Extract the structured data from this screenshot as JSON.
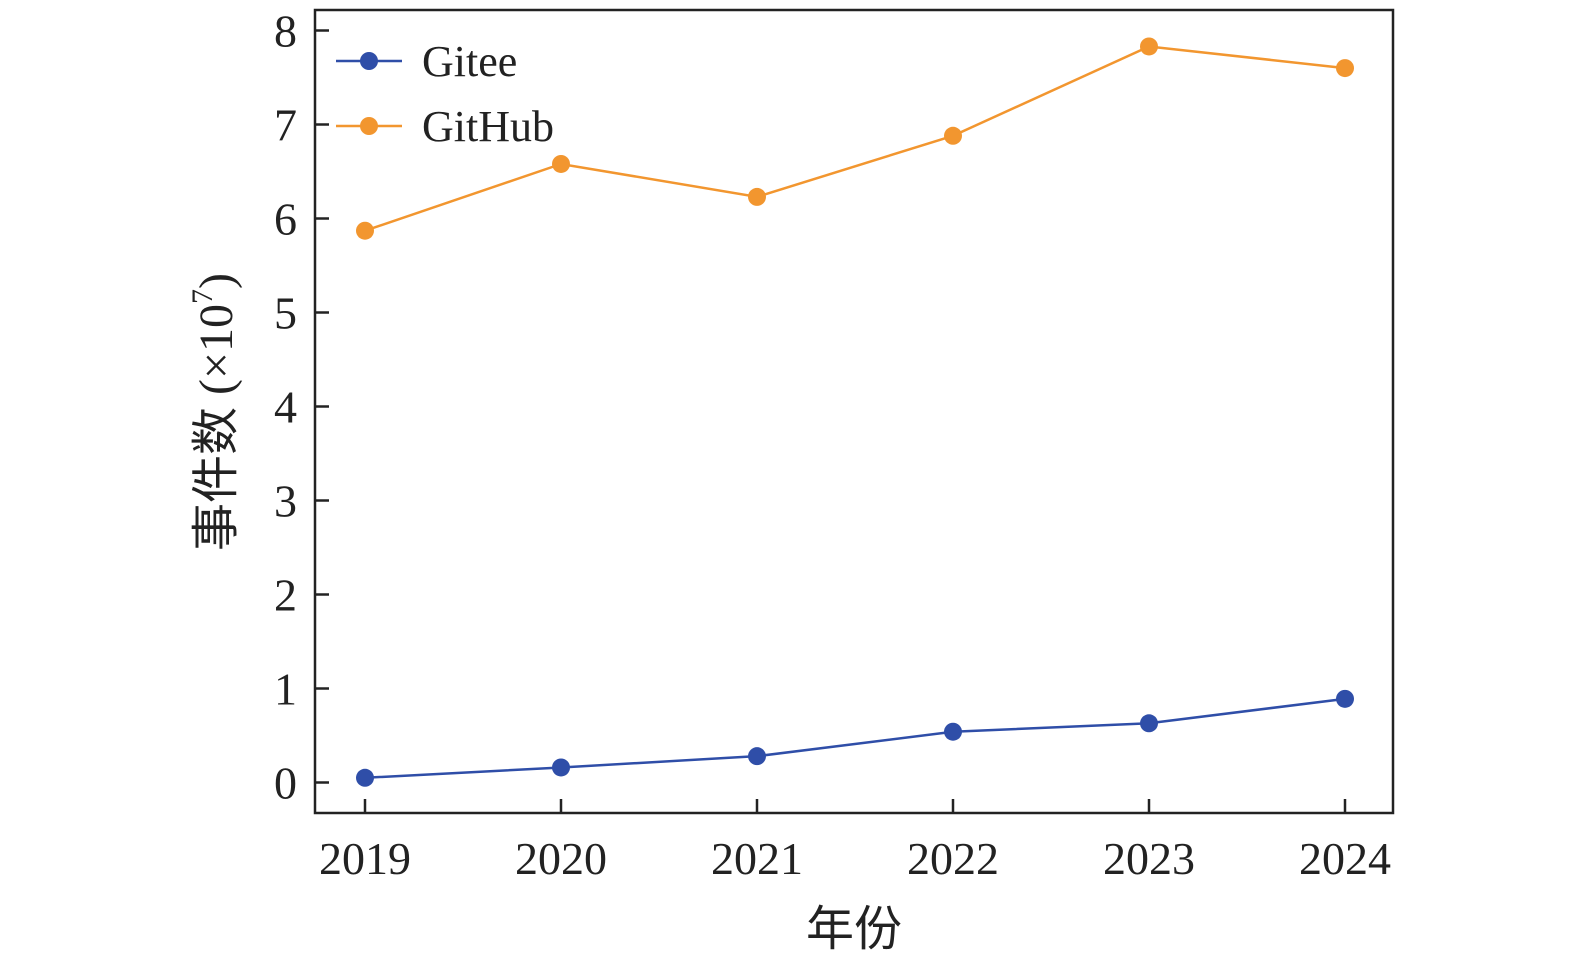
{
  "chart_data": {
    "type": "line",
    "title": "",
    "xlabel": "年份",
    "ylabel": "事件数 (×10",
    "ylabel_exponent": "7",
    "ylabel_close": ")",
    "x": [
      "2019",
      "2020",
      "2021",
      "2022",
      "2023",
      "2024"
    ],
    "ylim": [
      -0.33,
      8.2
    ],
    "yticks": [
      0,
      1,
      2,
      3,
      4,
      5,
      6,
      7,
      8
    ],
    "ytick_labels": [
      "0",
      "1",
      "2",
      "3",
      "4",
      "5",
      "6",
      "7",
      "8"
    ],
    "grid": false,
    "legend_position": "top-left",
    "series": [
      {
        "name": "Gitee",
        "color": "#2f4ea8",
        "values": [
          0.05,
          0.16,
          0.28,
          0.54,
          0.63,
          0.89
        ]
      },
      {
        "name": "GitHub",
        "color": "#f2962f",
        "values": [
          5.87,
          6.58,
          6.23,
          6.88,
          7.83,
          7.6
        ]
      }
    ]
  }
}
